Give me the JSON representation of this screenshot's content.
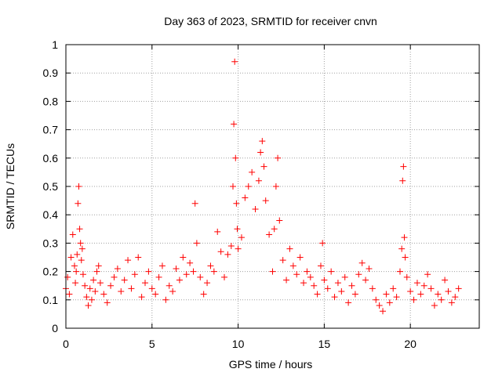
{
  "chart_data": {
    "type": "scatter",
    "title": "Day 363 of 2023, SRMTID for receiver cnvn",
    "xlabel": "GPS time / hours",
    "ylabel": "SRMTID / TECUs",
    "xlim": [
      0,
      24
    ],
    "ylim": [
      0,
      1
    ],
    "xticks": [
      0,
      5,
      10,
      15,
      20
    ],
    "yticks": [
      0,
      0.1,
      0.2,
      0.3,
      0.4,
      0.5,
      0.6,
      0.7,
      0.8,
      0.9,
      1
    ],
    "grid": true,
    "marker": "+",
    "color": "#ff0000",
    "series": [
      {
        "name": "SRMTID",
        "x": [
          0.0,
          0.1,
          0.2,
          0.3,
          0.4,
          0.5,
          0.55,
          0.6,
          0.65,
          0.7,
          0.75,
          0.8,
          0.85,
          0.9,
          0.95,
          1.0,
          1.1,
          1.2,
          1.3,
          1.4,
          1.5,
          1.6,
          1.7,
          1.8,
          1.9,
          2.0,
          2.2,
          2.4,
          2.6,
          2.8,
          3.0,
          3.2,
          3.4,
          3.6,
          3.8,
          4.0,
          4.2,
          4.4,
          4.6,
          4.8,
          5.0,
          5.2,
          5.4,
          5.6,
          5.8,
          6.0,
          6.2,
          6.4,
          6.6,
          6.8,
          7.0,
          7.2,
          7.4,
          7.5,
          7.6,
          7.8,
          8.0,
          8.2,
          8.4,
          8.6,
          8.8,
          9.0,
          9.2,
          9.4,
          9.6,
          9.7,
          9.75,
          9.8,
          9.85,
          9.9,
          9.95,
          10.0,
          10.2,
          10.4,
          10.6,
          10.8,
          11.0,
          11.2,
          11.3,
          11.4,
          11.5,
          11.6,
          11.8,
          12.0,
          12.1,
          12.2,
          12.3,
          12.4,
          12.6,
          12.8,
          13.0,
          13.2,
          13.4,
          13.6,
          13.8,
          14.0,
          14.2,
          14.4,
          14.6,
          14.8,
          14.9,
          15.0,
          15.2,
          15.4,
          15.6,
          15.8,
          16.0,
          16.2,
          16.4,
          16.6,
          16.8,
          17.0,
          17.2,
          17.4,
          17.6,
          17.8,
          18.0,
          18.2,
          18.4,
          18.6,
          18.8,
          19.0,
          19.2,
          19.4,
          19.5,
          19.55,
          19.6,
          19.65,
          19.7,
          19.8,
          20.0,
          20.2,
          20.4,
          20.6,
          20.8,
          21.0,
          21.2,
          21.4,
          21.6,
          21.8,
          22.0,
          22.2,
          22.4,
          22.6,
          22.8
        ],
        "y": [
          0.14,
          0.18,
          0.12,
          0.25,
          0.33,
          0.22,
          0.16,
          0.2,
          0.26,
          0.44,
          0.5,
          0.35,
          0.3,
          0.24,
          0.28,
          0.19,
          0.15,
          0.11,
          0.08,
          0.14,
          0.1,
          0.17,
          0.13,
          0.2,
          0.22,
          0.16,
          0.12,
          0.09,
          0.15,
          0.18,
          0.21,
          0.13,
          0.17,
          0.24,
          0.14,
          0.19,
          0.25,
          0.11,
          0.16,
          0.2,
          0.14,
          0.12,
          0.18,
          0.22,
          0.1,
          0.15,
          0.13,
          0.21,
          0.17,
          0.25,
          0.19,
          0.23,
          0.2,
          0.44,
          0.3,
          0.18,
          0.12,
          0.16,
          0.22,
          0.2,
          0.34,
          0.27,
          0.18,
          0.26,
          0.29,
          0.5,
          0.72,
          0.94,
          0.6,
          0.44,
          0.35,
          0.28,
          0.32,
          0.46,
          0.5,
          0.55,
          0.42,
          0.52,
          0.62,
          0.66,
          0.57,
          0.45,
          0.33,
          0.2,
          0.35,
          0.5,
          0.6,
          0.38,
          0.24,
          0.17,
          0.28,
          0.22,
          0.19,
          0.25,
          0.16,
          0.2,
          0.18,
          0.15,
          0.12,
          0.22,
          0.3,
          0.17,
          0.14,
          0.2,
          0.11,
          0.16,
          0.13,
          0.18,
          0.09,
          0.15,
          0.12,
          0.19,
          0.23,
          0.17,
          0.21,
          0.14,
          0.1,
          0.08,
          0.06,
          0.12,
          0.09,
          0.14,
          0.11,
          0.2,
          0.28,
          0.52,
          0.57,
          0.32,
          0.25,
          0.18,
          0.13,
          0.1,
          0.16,
          0.12,
          0.15,
          0.19,
          0.14,
          0.08,
          0.12,
          0.1,
          0.17,
          0.13,
          0.09,
          0.11,
          0.14
        ]
      }
    ]
  }
}
